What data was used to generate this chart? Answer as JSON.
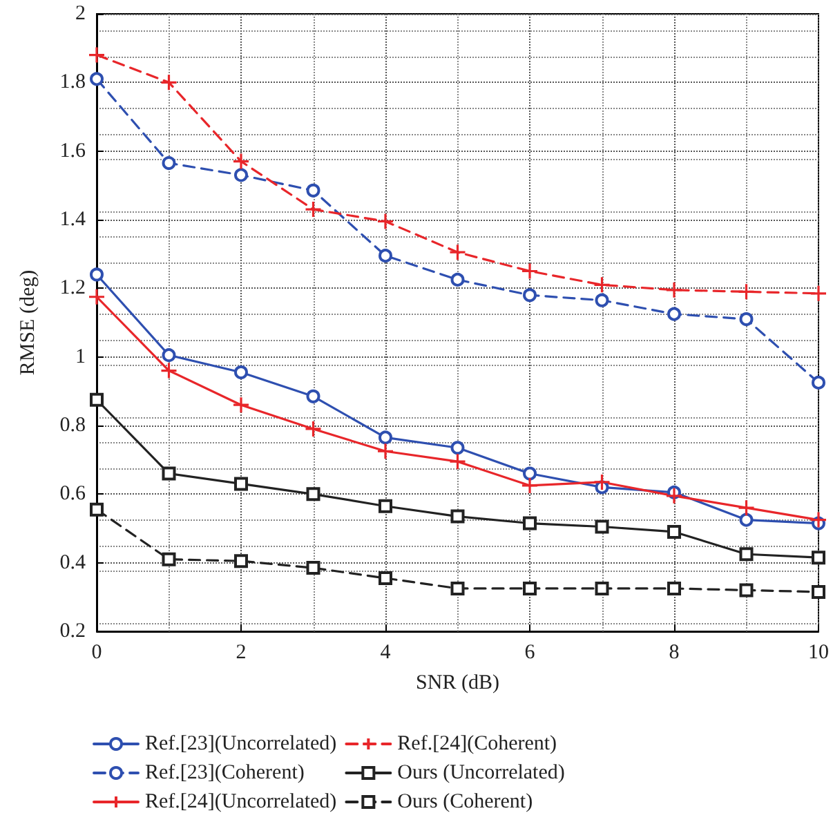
{
  "chart_data": {
    "type": "line",
    "xlabel": "SNR (dB)",
    "ylabel": "RMSE (deg)",
    "x": [
      0,
      1,
      2,
      3,
      4,
      5,
      6,
      7,
      8,
      9,
      10
    ],
    "xlim": [
      0,
      10
    ],
    "xticks": [
      0,
      2,
      4,
      6,
      8,
      10
    ],
    "ylim": [
      0.2,
      2
    ],
    "yticks": [
      0.2,
      0.4,
      0.6,
      0.8,
      1,
      1.2,
      1.4,
      1.6,
      1.8,
      2
    ],
    "grid": true,
    "legend": "bottom",
    "series": [
      {
        "name": "Ref.[23](Uncorrelated)",
        "color": "#2e4fb0",
        "marker": "circle",
        "line_style": "solid",
        "values": [
          1.24,
          1.005,
          0.955,
          0.885,
          0.765,
          0.735,
          0.66,
          0.62,
          0.605,
          0.525,
          0.515
        ]
      },
      {
        "name": "Ref.[23](Coherent)",
        "color": "#2e4fb0",
        "marker": "circle",
        "line_style": "dashed",
        "values": [
          1.81,
          1.565,
          1.53,
          1.485,
          1.295,
          1.225,
          1.18,
          1.165,
          1.125,
          1.11,
          0.925
        ]
      },
      {
        "name": "Ref.[24](Uncorrelated)",
        "color": "#e8262a",
        "marker": "cross",
        "line_style": "solid",
        "values": [
          1.175,
          0.96,
          0.86,
          0.79,
          0.725,
          0.695,
          0.625,
          0.635,
          0.595,
          0.56,
          0.525
        ]
      },
      {
        "name": "Ref.[24](Coherent)",
        "color": "#e8262a",
        "marker": "cross",
        "line_style": "dashed",
        "values": [
          1.88,
          1.8,
          1.57,
          1.43,
          1.395,
          1.305,
          1.25,
          1.21,
          1.195,
          1.19,
          1.185
        ]
      },
      {
        "name": "Ours (Uncorrelated)",
        "color": "#222222",
        "marker": "square",
        "line_style": "solid",
        "values": [
          0.875,
          0.66,
          0.63,
          0.6,
          0.565,
          0.535,
          0.515,
          0.505,
          0.49,
          0.425,
          0.415
        ]
      },
      {
        "name": "Ours (Coherent)",
        "color": "#222222",
        "marker": "square",
        "line_style": "dashed",
        "values": [
          0.555,
          0.41,
          0.405,
          0.385,
          0.355,
          0.325,
          0.325,
          0.325,
          0.325,
          0.32,
          0.315
        ]
      }
    ]
  }
}
